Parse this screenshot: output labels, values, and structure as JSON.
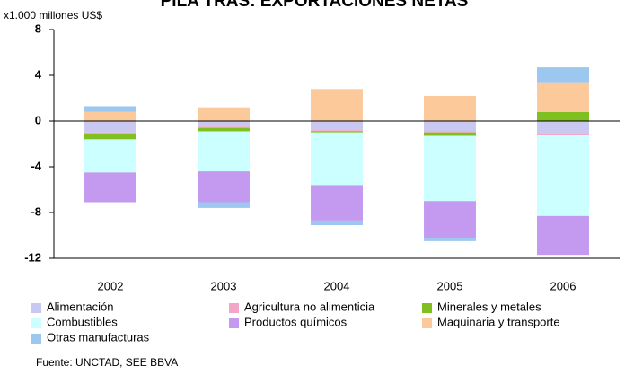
{
  "chart_data": {
    "type": "stacked_bar",
    "title": "PILA TRAS: EXPORTACIONES NETAS",
    "y_label": "x1.000 millones US$",
    "source": "Fuente: UNCTAD, SEE BBVA",
    "categories": [
      "2002",
      "2003",
      "2004",
      "2005",
      "2006"
    ],
    "series": [
      {
        "name": "Alimentación",
        "color": "#c8c8f0",
        "values": [
          -1.0,
          -0.5,
          -0.8,
          -0.9,
          -1.1
        ]
      },
      {
        "name": "Agricultura no alimenticia",
        "color": "#f4a6c8",
        "values": [
          -0.1,
          -0.1,
          -0.1,
          -0.1,
          -0.1
        ]
      },
      {
        "name": "Minerales y metales",
        "color": "#7fbf1f",
        "values": [
          -0.5,
          -0.3,
          -0.1,
          -0.3,
          0.8
        ]
      },
      {
        "name": "Combustibles",
        "color": "#ccffff",
        "values": [
          -2.9,
          -3.5,
          -4.6,
          -5.7,
          -7.1
        ]
      },
      {
        "name": "Productos químicos",
        "color": "#c39af0",
        "values": [
          -2.6,
          -2.7,
          -3.1,
          -3.2,
          -3.4
        ]
      },
      {
        "name": "Maquinaria y transporte",
        "color": "#fcc99a",
        "values": [
          0.8,
          1.2,
          2.8,
          2.2,
          2.6
        ]
      },
      {
        "name": "Otras manufacturas",
        "color": "#9cc8f0",
        "values": [
          0.5,
          -0.5,
          -0.4,
          -0.3,
          1.3
        ]
      }
    ],
    "ylim": [
      -12,
      8
    ],
    "yticks": [
      -12,
      -8,
      -4,
      0,
      4,
      8
    ],
    "grid": false
  }
}
